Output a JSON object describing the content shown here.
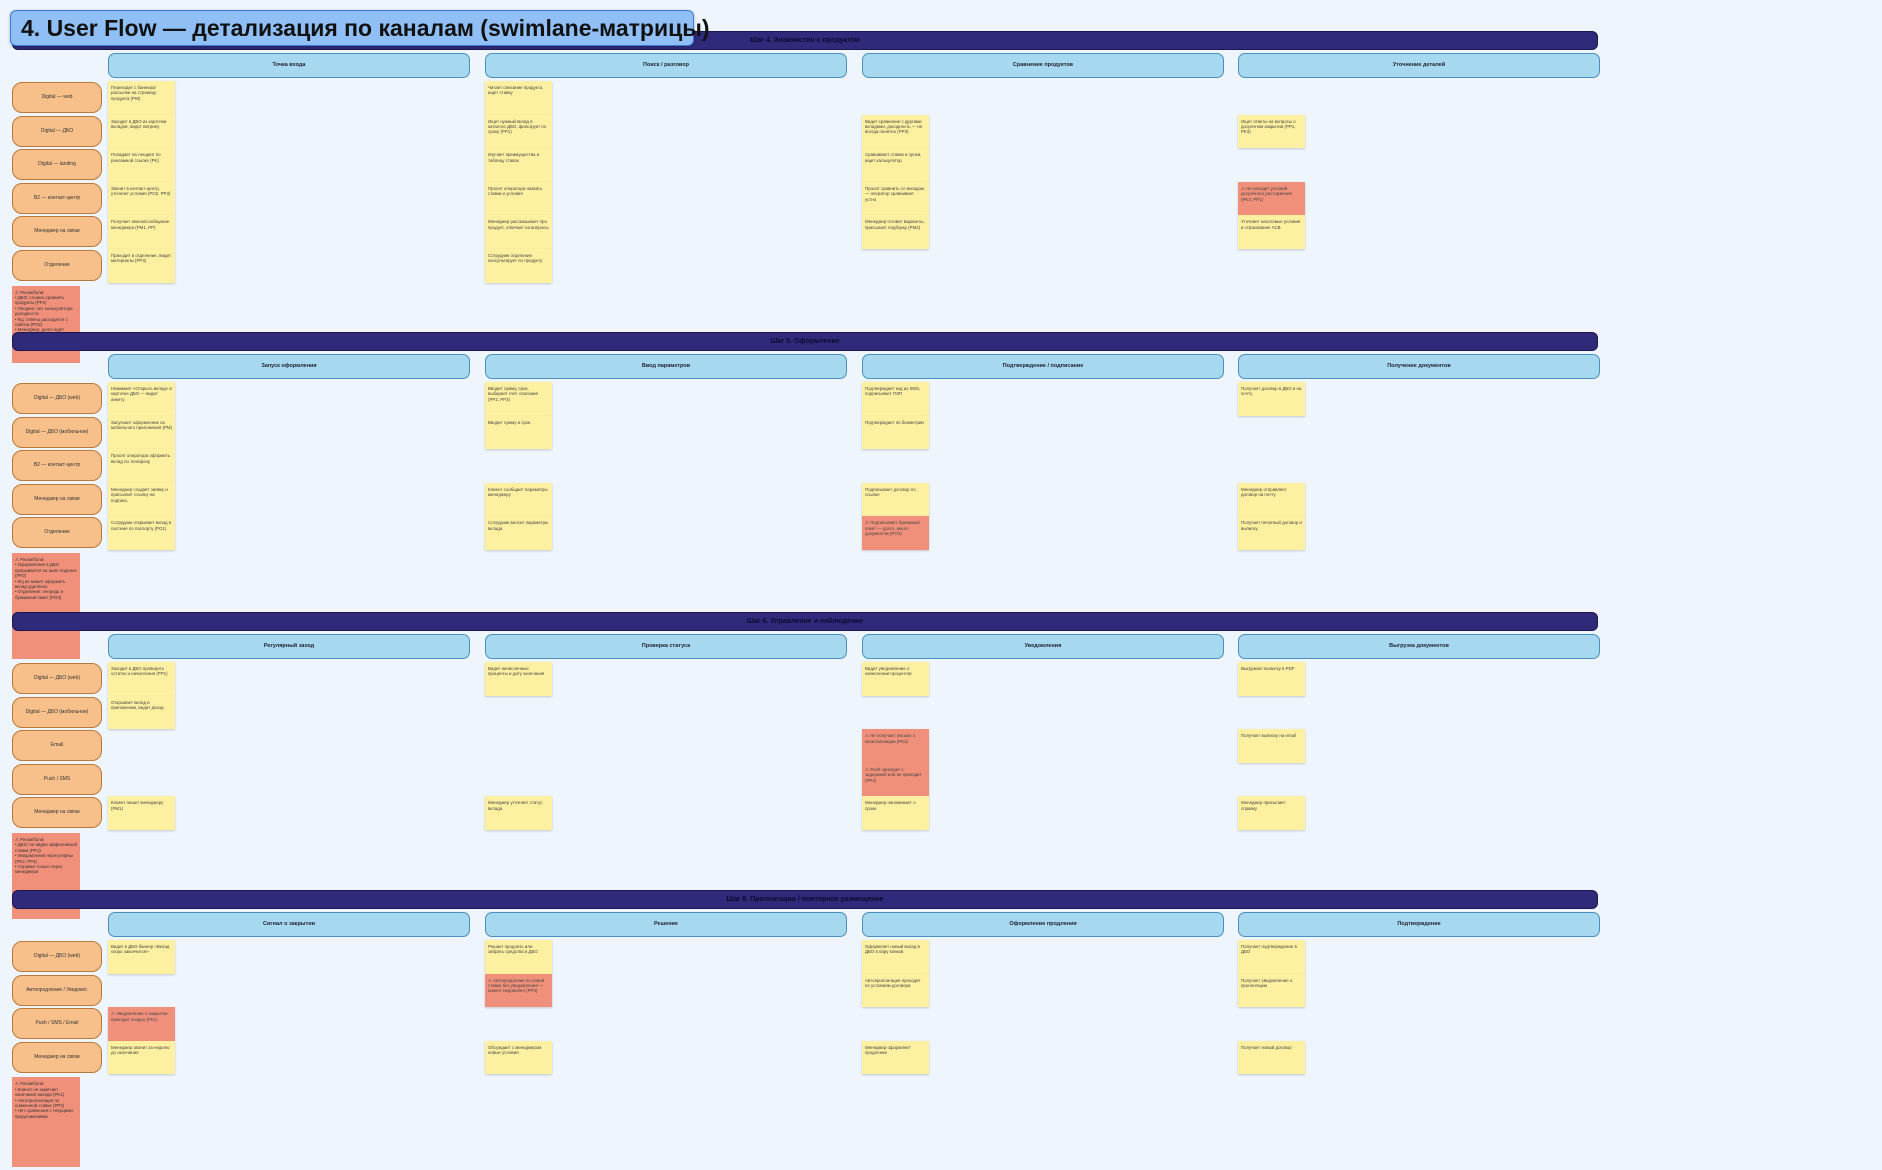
{
  "title": "4. User Flow — детализация по каналам (swimlane-матрицы)",
  "sections": [
    {
      "step": "Шаг 4. Знакомство с продуктом",
      "columns": [
        "Точка входа",
        "Поиск / разговор",
        "Сравнение продуктов",
        "Уточнение деталей"
      ],
      "rows": [
        "Digital — web",
        "Digital — ДБО",
        "Digital — landing",
        "В2 — контакт-центр",
        "Менеджер на связи",
        "Отделение"
      ],
      "cells": [
        [
          "Переходит с баннера/рассылки на страницу продукта (PW)",
          "Заходит в ДБО из карточки вкладов, видит витрину",
          "Попадает на лендинг по рекламной ссылке (PK)",
          "Звонит в контакт-центр, уточняет условия (PO2, PP3)",
          "Получает звонок/сообщение менеджера (PM1, PP)",
          "Приходит в отделение, видит материалы (PP4)"
        ],
        [
          "Читает описание продукта, ищет ставку",
          "Ищет нужный вклад в каталоге ДБО, фильтрует по сроку (PP1)",
          "Изучает преимущества и таблицу ставок",
          "Просит оператора назвать ставки и условия",
          "Менеджер рассказывает про продукт, отвечает на вопросы",
          "Сотрудник отделения консультирует по продукту"
        ],
        [
          null,
          "Видит сравнение с другими вкладами, доходность — не всегда понятно (PP3)",
          "Сравнивает ставки и сроки, ищет калькулятор",
          "Просит сравнить со вкладом — оператор сравнивает устно",
          "Менеджер готовит варианты, присылает подборку (PM2)",
          null
        ],
        [
          null,
          "Ищет ответы на вопросы о досрочном закрытии (PP1, PK3)",
          null,
          "⚠ Не находит условий досрочного расторжения (PK3, PP1)",
          "Уточняет налоговые условия и страхование АСВ",
          null
        ]
      ],
      "risk": "⚠ Риски/боли:\n• ДБО: сложно сравнить продукты (PP1)\n• Лендинг: нет калькулятора доходности\n• КЦ: ответы расходятся с сайтом (PO2)\n• Менеджер: долго ждёт подборку"
    },
    {
      "step": "Шаг 5. Оформление",
      "columns": [
        "Запуск оформления",
        "Ввод параметров",
        "Подтверждение / подписание",
        "Получение документов"
      ],
      "rows": [
        "Digital — ДБО (web)",
        "Digital — ДБО (мобильное)",
        "В2 — контакт-центр",
        "Менеджер на связи",
        "Отделение"
      ],
      "cells": [
        [
          "Нажимает «Открыть вклад» в карточке ДБО — видит анкету",
          "Запускает оформление из мобильного приложения (PM)",
          "Просит оператора оформить вклад по телефону",
          "Менеджер создаёт заявку и присылает ссылку на подпись",
          "Сотрудник открывает вклад в системе по паспорту (PO1)"
        ],
        [
          "Вводит сумму, срок, выбирает счёт списания (PP2, PP3)",
          "Вводит сумму и срок",
          null,
          "Клиент сообщает параметры менеджеру",
          "Сотрудник вносит параметры вклада"
        ],
        [
          "Подтверждает код из SMS, подписывает ПЭП",
          "Подтверждает по биометрии",
          null,
          "Подписывает договор по ссылке",
          "⚠ Подписывает бумажный пакет — долго, много документов (PO3)"
        ],
        [
          "Получает договор в ДБО и на почту",
          null,
          null,
          "Менеджер отправляет договор на почту",
          "Получает печатный договор и выписку"
        ]
      ],
      "risk": "⚠ Риски/боли:\n• Оформление в ДБО прерывается на шаге подписи (PP2)\n• КЦ не может оформить вклад удалённо\n• Отделение: очередь и бумажный пакет (PO3)"
    },
    {
      "step": "Шаг 6. Управление и наблюдение",
      "columns": [
        "Регулярный заход",
        "Проверка статуса",
        "Уведомления",
        "Выгрузка документов"
      ],
      "rows": [
        "Digital — ДБО (web)",
        "Digital — ДБО (мобильное)",
        "Email",
        "Push / SMS",
        "Менеджер на связи"
      ],
      "cells": [
        [
          "Заходит в ДБО проверить остаток и начисления (PP1)",
          "Открывает вклад в приложении, видит доход",
          null,
          null,
          "Клиент пишет менеджеру (PM1)"
        ],
        [
          "Видит начисленные проценты и дату окончания",
          null,
          null,
          null,
          "Менеджер уточняет статус вклада"
        ],
        [
          "Видит уведомление о начислении процентов",
          null,
          "⚠ Не получает письмо о капитализации (PK2)",
          "⚠ Push приходит с задержкой или не приходит (PP4)",
          "Менеджер напоминает о сроке"
        ],
        [
          "Выгружает выписку в PDF",
          null,
          "Получает выписку на email",
          null,
          "Менеджер присылает справку"
        ]
      ],
      "risk": "⚠ Риски/боли:\n• ДБО: не видно эффективной ставки (PP1)\n• Уведомления нерегулярны (PK2, PP4)\n• Справки только через менеджера"
    },
    {
      "step": "Шаг 8. Пролонгация / повторное размещение",
      "columns": [
        "Сигнал о закрытии",
        "Решение",
        "Оформление продления",
        "Подтверждение"
      ],
      "rows": [
        "Digital — ДБО (web)",
        "Автопродление / Уведомл.",
        "Push / SMS / Email",
        "Менеджер на связи"
      ],
      "cells": [
        [
          "Видит в ДБО баннер «Вклад скоро закончится»",
          null,
          "⚠ Уведомление о закрытии приходит поздно (PK1)",
          "Менеджер звонит за неделю до окончания"
        ],
        [
          "Решает продлить или забрать средства в ДБО",
          "⚠ Автопродление по новой ставке без уведомления — клиент недоволен (PP3)",
          null,
          "Обсуждает с менеджером новые условия"
        ],
        [
          "Оформляет новый вклад в ДБО в пару кликов",
          "Автопролонгация проходит по условиям договора",
          null,
          "Менеджер оформляет продление"
        ],
        [
          "Получает подтверждение в ДБО",
          "Получает уведомление о пролонгации",
          null,
          "Получает новый договор"
        ]
      ],
      "risk": "⚠ Риски/боли:\n• Клиент не замечает окончания вклада (PK1)\n• Автопролонгация по сниженной ставке (PP3)\n• Нет сравнения с текущими предложениями"
    }
  ]
}
